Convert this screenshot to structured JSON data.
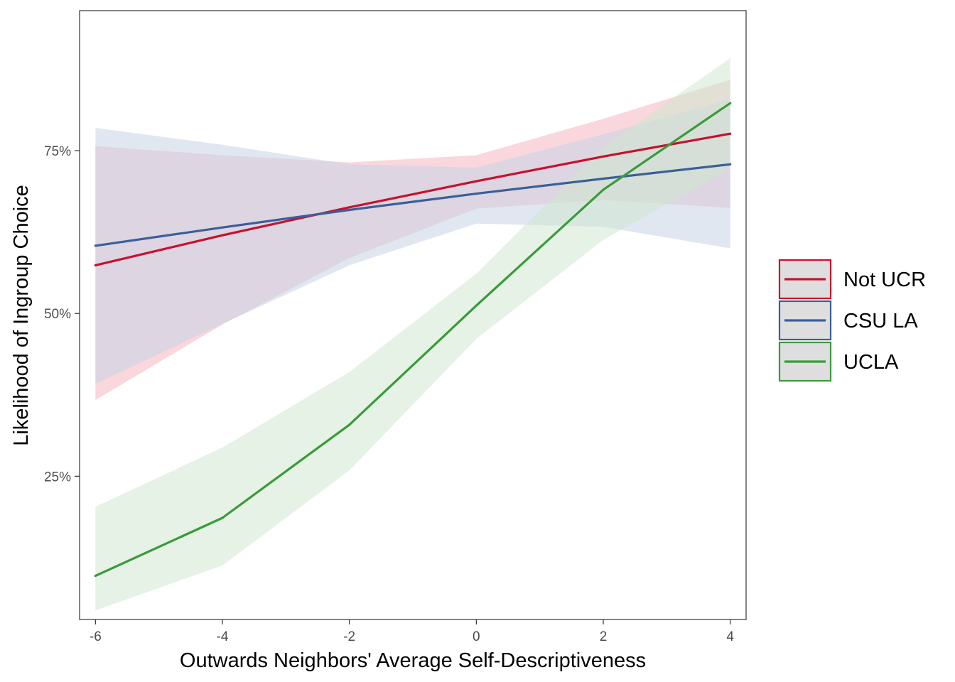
{
  "chart_data": {
    "type": "line",
    "title": "",
    "xlabel": "Outwards Neighbors' Average Self-Descriptiveness",
    "ylabel": "Likelihood of Ingroup Choice",
    "xlim": [
      -6.25,
      4.25
    ],
    "ylim": [
      0.03,
      0.965
    ],
    "x_ticks": [
      -6,
      -4,
      -2,
      0,
      2,
      4
    ],
    "x_tick_labels": [
      "-6",
      "-4",
      "-2",
      "0",
      "2",
      "4"
    ],
    "y_ticks": [
      0.25,
      0.5,
      0.75
    ],
    "y_tick_labels": [
      "25%",
      "50%",
      "75%"
    ],
    "grid": false,
    "legend_position": "right",
    "series": [
      {
        "name": "Not UCR",
        "color": "#c8102e",
        "fill": "#f4b6bf",
        "x": [
          -6,
          -4,
          -2,
          0,
          2,
          4
        ],
        "values": [
          0.574,
          0.62,
          0.663,
          0.703,
          0.741,
          0.776
        ],
        "lower": [
          0.367,
          0.483,
          0.585,
          0.661,
          0.674,
          0.662
        ],
        "upper": [
          0.757,
          0.743,
          0.732,
          0.743,
          0.799,
          0.859
        ]
      },
      {
        "name": "CSU LA",
        "color": "#3a5f9a",
        "fill": "#c6d3e6",
        "x": [
          -6,
          -4,
          -2,
          0,
          2,
          4
        ],
        "values": [
          0.604,
          0.632,
          0.659,
          0.684,
          0.707,
          0.729
        ],
        "lower": [
          0.392,
          0.484,
          0.574,
          0.638,
          0.633,
          0.6
        ],
        "upper": [
          0.785,
          0.759,
          0.729,
          0.724,
          0.775,
          0.829
        ]
      },
      {
        "name": "UCLA",
        "color": "#3a9a3a",
        "fill": "#cfe7cf",
        "x": [
          -6,
          -4,
          -2,
          0,
          2,
          4
        ],
        "values": [
          0.097,
          0.186,
          0.329,
          0.512,
          0.69,
          0.823
        ],
        "lower": [
          0.044,
          0.113,
          0.259,
          0.461,
          0.613,
          0.722
        ],
        "upper": [
          0.203,
          0.294,
          0.41,
          0.561,
          0.756,
          0.892
        ]
      }
    ]
  }
}
